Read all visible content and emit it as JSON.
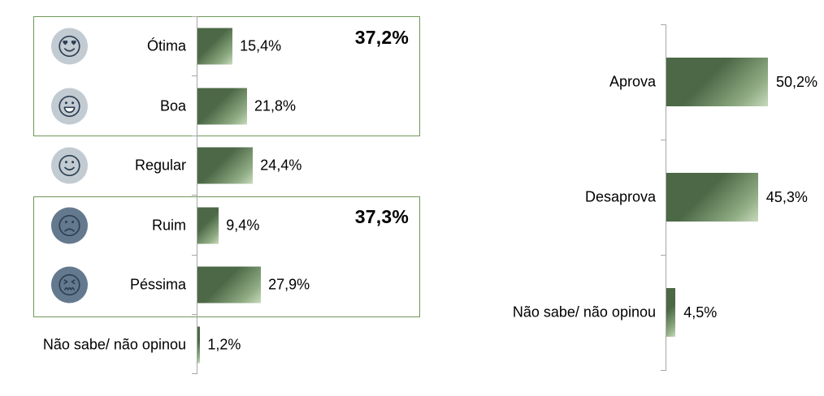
{
  "colors": {
    "bar_dark": "#4c6846",
    "bar_mid": "#8fac84",
    "bar_light": "#c8dabc",
    "box_border": "#6f9758",
    "axis": "#a6a6a6",
    "icon_circle_light": "#c3cbd2",
    "icon_circle_dark": "#64798e",
    "icon_face": "#2d4054",
    "text": "#000000"
  },
  "chart_data": [
    {
      "type": "bar",
      "orientation": "horizontal",
      "title": "",
      "categories": [
        "Ótima",
        "Boa",
        "Regular",
        "Ruim",
        "Péssima",
        "Não sabe/ não opinou"
      ],
      "values": [
        15.4,
        21.8,
        24.4,
        9.4,
        27.9,
        1.2
      ],
      "value_labels": [
        "15,4%",
        "21,8%",
        "24,4%",
        "9,4%",
        "27,9%",
        "1,2%"
      ],
      "icons": [
        "heart-eyes-face",
        "grinning-face",
        "slightly-smiling-face",
        "frowning-face",
        "confounded-face",
        null
      ],
      "groups": [
        {
          "label": "37,2%",
          "members": [
            "Ótima",
            "Boa"
          ]
        },
        {
          "label": "37,3%",
          "members": [
            "Ruim",
            "Péssima"
          ]
        }
      ],
      "grid": false,
      "legend": "none"
    },
    {
      "type": "bar",
      "orientation": "horizontal",
      "title": "",
      "categories": [
        "Aprova",
        "Desaprova",
        "Não sabe/ não opinou"
      ],
      "values": [
        50.2,
        45.3,
        4.5
      ],
      "value_labels": [
        "50,2%",
        "45,3%",
        "4,5%"
      ],
      "grid": false,
      "legend": "none"
    }
  ]
}
